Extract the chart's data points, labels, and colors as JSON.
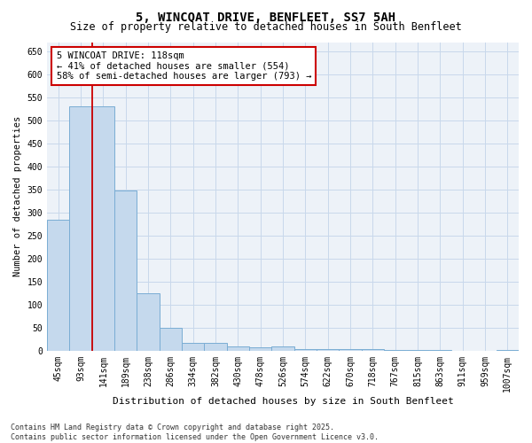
{
  "title1": "5, WINCOAT DRIVE, BENFLEET, SS7 5AH",
  "title2": "Size of property relative to detached houses in South Benfleet",
  "xlabel": "Distribution of detached houses by size in South Benfleet",
  "ylabel": "Number of detached properties",
  "categories": [
    "45sqm",
    "93sqm",
    "141sqm",
    "189sqm",
    "238sqm",
    "286sqm",
    "334sqm",
    "382sqm",
    "430sqm",
    "478sqm",
    "526sqm",
    "574sqm",
    "622sqm",
    "670sqm",
    "718sqm",
    "767sqm",
    "815sqm",
    "863sqm",
    "911sqm",
    "959sqm",
    "1007sqm"
  ],
  "values": [
    285,
    530,
    530,
    348,
    125,
    50,
    18,
    18,
    10,
    8,
    9,
    3,
    3,
    3,
    4,
    2,
    2,
    1,
    0,
    0,
    2
  ],
  "bar_color": "#c5d9ed",
  "bar_edge_color": "#7aadd4",
  "grid_color": "#c8d8eb",
  "bg_color": "#edf2f8",
  "vline_x": 1.5,
  "vline_color": "#cc0000",
  "annotation_text": "5 WINCOAT DRIVE: 118sqm\n← 41% of detached houses are smaller (554)\n58% of semi-detached houses are larger (793) →",
  "annotation_box_color": "#cc0000",
  "ylim": [
    0,
    670
  ],
  "yticks": [
    0,
    50,
    100,
    150,
    200,
    250,
    300,
    350,
    400,
    450,
    500,
    550,
    600,
    650
  ],
  "footer": "Contains HM Land Registry data © Crown copyright and database right 2025.\nContains public sector information licensed under the Open Government Licence v3.0.",
  "title1_fontsize": 10,
  "title2_fontsize": 8.5,
  "xlabel_fontsize": 8,
  "ylabel_fontsize": 7.5,
  "tick_fontsize": 7,
  "annotation_fontsize": 7.5,
  "footer_fontsize": 6
}
